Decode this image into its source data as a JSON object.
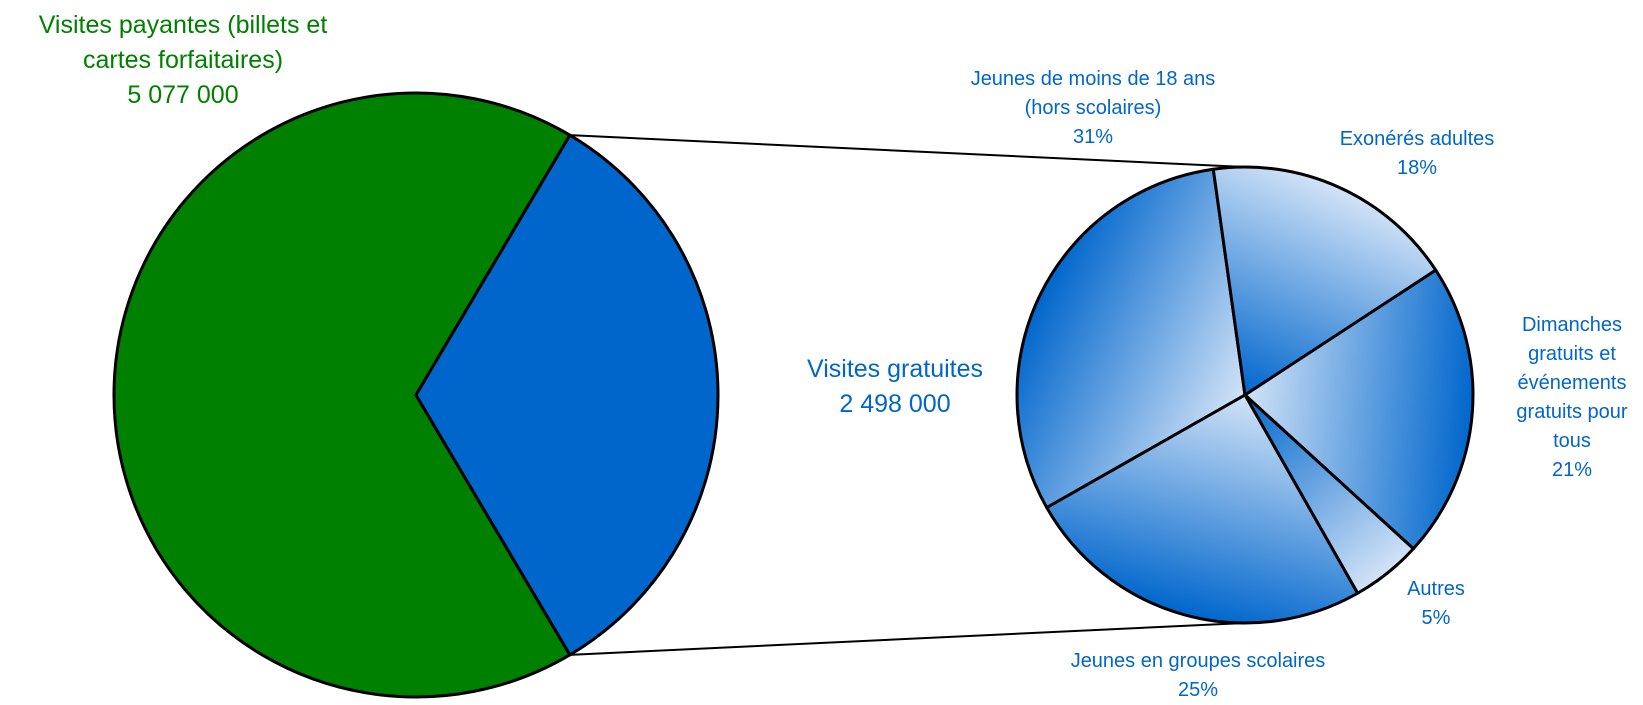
{
  "chart_data": [
    {
      "type": "pie",
      "categories": [
        "Visites payantes (billets et cartes forfaitaires)",
        "Visites gratuites"
      ],
      "values": [
        5077000,
        2498000
      ],
      "value_labels": [
        "5 077 000",
        "2 498 000"
      ],
      "colors": [
        "#008000",
        "#0066cc"
      ]
    },
    {
      "type": "pie",
      "categories": [
        "Jeunes de moins de 18 ans (hors scolaires)",
        "Exonérés adultes",
        "Dimanches gratuits et événements gratuits pour tous",
        "Autres",
        "Jeunes en groupes scolaires"
      ],
      "values": [
        31,
        18,
        21,
        5,
        25
      ],
      "value_labels": [
        "31%",
        "18%",
        "21%",
        "5%",
        "25%"
      ],
      "color": "#0066cc"
    }
  ]
}
